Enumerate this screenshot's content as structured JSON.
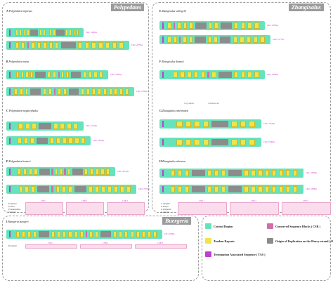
{
  "colors": {
    "control_region": "#66e3bb",
    "tandem_repeat": "#f0e44a",
    "csb": "#d26ea6",
    "ohr": "#8c8c8c",
    "tas": "#c03fd2",
    "csb_box": "#fadcec"
  },
  "genera": {
    "polypedates": "Polypedates",
    "zhangixalus": "Zhangixalus",
    "buergeria": "Buergeria"
  },
  "panels": [
    {
      "letter": "A",
      "species": "Polypedates impresus",
      "rows": [
        {
          "end_label": "CR1: 1602bp",
          "segs": [
            [
              "m",
              0.07
            ],
            [
              "y",
              0.03
            ],
            [
              "y",
              0.03
            ],
            [
              "y",
              0.03
            ],
            [
              "y",
              0.03
            ],
            [
              "g",
              0.09
            ],
            [
              "y",
              0.03
            ],
            [
              "y",
              0.03
            ],
            [
              "m",
              0.015
            ],
            [
              "y",
              0.03
            ],
            [
              "y",
              0.03
            ],
            [
              "g",
              0.09
            ],
            [
              "y",
              0.03
            ],
            [
              "y",
              0.03
            ],
            [
              "y",
              0.03
            ],
            [
              "y",
              0.03
            ]
          ]
        },
        {
          "end_label": "CR2: 2079bp",
          "segs": [
            [
              "m",
              0.025
            ],
            [
              "y",
              0.02
            ],
            [
              "y",
              0.02
            ],
            [
              "p",
              0.01
            ],
            [
              "y",
              0.02
            ],
            [
              "y",
              0.02
            ],
            [
              "y",
              0.02
            ],
            [
              "y",
              0.02
            ],
            [
              "y",
              0.02
            ],
            [
              "g",
              0.08
            ],
            [
              "y",
              0.025
            ],
            [
              "y",
              0.025
            ],
            [
              "y",
              0.025
            ],
            [
              "y",
              0.025
            ],
            [
              "y",
              0.025
            ],
            [
              "y",
              0.025
            ],
            [
              "y",
              0.025
            ]
          ]
        }
      ]
    },
    {
      "letter": "B",
      "species": "Polypedates mutus",
      "rows": [
        {
          "end_label": "CR1: 1860bp",
          "segs": [
            [
              "m",
              0.04
            ],
            [
              "y",
              0.02
            ],
            [
              "y",
              0.02
            ],
            [
              "y",
              0.02
            ],
            [
              "y",
              0.02
            ],
            [
              "g",
              0.07
            ],
            [
              "y",
              0.025
            ],
            [
              "y",
              0.025
            ],
            [
              "p",
              0.01
            ],
            [
              "y",
              0.02
            ],
            [
              "y",
              0.02
            ],
            [
              "g",
              0.07
            ],
            [
              "y",
              0.025
            ],
            [
              "y",
              0.025
            ],
            [
              "y",
              0.025
            ],
            [
              "y",
              0.025
            ]
          ]
        },
        {
          "end_label": "CR2: 2785bp",
          "segs": [
            [
              "m",
              0.02
            ],
            [
              "y",
              0.02
            ],
            [
              "y",
              0.02
            ],
            [
              "y",
              0.02
            ],
            [
              "g",
              0.06
            ],
            [
              "y",
              0.02
            ],
            [
              "y",
              0.02
            ],
            [
              "p",
              0.01
            ],
            [
              "y",
              0.02
            ],
            [
              "y",
              0.02
            ],
            [
              "g",
              0.06
            ],
            [
              "y",
              0.02
            ],
            [
              "y",
              0.02
            ],
            [
              "y",
              0.02
            ],
            [
              "y",
              0.02
            ],
            [
              "y",
              0.02
            ],
            [
              "y",
              0.02
            ],
            [
              "y",
              0.02
            ],
            [
              "y",
              0.02
            ],
            [
              "y",
              0.02
            ]
          ]
        }
      ]
    },
    {
      "letter": "C",
      "species": "Polypedates megacephalus",
      "rows": [
        {
          "end_label": "CR1: 1574bp",
          "segs": [
            [
              "m",
              0.05
            ],
            [
              "y",
              0.03
            ],
            [
              "y",
              0.03
            ],
            [
              "y",
              0.03
            ],
            [
              "g",
              0.08
            ],
            [
              "y",
              0.03
            ],
            [
              "y",
              0.03
            ],
            [
              "y",
              0.03
            ],
            [
              "y",
              0.03
            ]
          ]
        },
        {
          "end_label": "CR2: 1930bp",
          "segs": [
            [
              "m",
              0.05
            ],
            [
              "y",
              0.03
            ],
            [
              "y",
              0.03
            ],
            [
              "y",
              0.03
            ],
            [
              "g",
              0.08
            ],
            [
              "y",
              0.03
            ],
            [
              "y",
              0.03
            ],
            [
              "y",
              0.03
            ],
            [
              "y",
              0.03
            ],
            [
              "y",
              0.03
            ],
            [
              "y",
              0.03
            ]
          ]
        }
      ]
    },
    {
      "letter": "D",
      "species": "Polypedates braueri",
      "rows": [
        {
          "end_label": "CR1: 2012bp",
          "segs": [
            [
              "m",
              0.05
            ],
            [
              "y",
              0.025
            ],
            [
              "y",
              0.025
            ],
            [
              "y",
              0.025
            ],
            [
              "y",
              0.025
            ],
            [
              "g",
              0.07
            ],
            [
              "p",
              0.01
            ],
            [
              "y",
              0.02
            ],
            [
              "y",
              0.02
            ],
            [
              "p",
              0.01
            ],
            [
              "y",
              0.02
            ],
            [
              "g",
              0.07
            ],
            [
              "y",
              0.025
            ],
            [
              "y",
              0.025
            ],
            [
              "y",
              0.025
            ],
            [
              "y",
              0.025
            ],
            [
              "y",
              0.025
            ]
          ]
        },
        {
          "end_label": "CR2: 2707bp",
          "segs": [
            [
              "m",
              0.04
            ],
            [
              "y",
              0.02
            ],
            [
              "y",
              0.02
            ],
            [
              "y",
              0.02
            ],
            [
              "g",
              0.06
            ],
            [
              "p",
              0.01
            ],
            [
              "y",
              0.02
            ],
            [
              "y",
              0.02
            ],
            [
              "y",
              0.02
            ],
            [
              "g",
              0.06
            ],
            [
              "y",
              0.02
            ],
            [
              "y",
              0.02
            ],
            [
              "y",
              0.02
            ],
            [
              "y",
              0.02
            ],
            [
              "y",
              0.02
            ],
            [
              "y",
              0.02
            ],
            [
              "y",
              0.02
            ]
          ]
        }
      ]
    },
    {
      "letter": "E",
      "species": "Zhangixalus schlegelii",
      "rows": [
        {
          "end_label": "CR1: 2085bp",
          "segs": [
            [
              "m",
              0.02
            ],
            [
              "y",
              0.02
            ],
            [
              "p",
              0.008
            ],
            [
              "y",
              0.02
            ],
            [
              "y",
              0.02
            ],
            [
              "y",
              0.02
            ],
            [
              "g",
              0.06
            ],
            [
              "y",
              0.02
            ],
            [
              "y",
              0.02
            ],
            [
              "g",
              0.06
            ],
            [
              "y",
              0.025
            ],
            [
              "y",
              0.025
            ],
            [
              "y",
              0.025
            ],
            [
              "y",
              0.025
            ]
          ]
        },
        {
          "end_label": "CR2: 2177bp",
          "segs": [
            [
              "m",
              0.02
            ],
            [
              "y",
              0.02
            ],
            [
              "y",
              0.02
            ],
            [
              "p",
              0.008
            ],
            [
              "y",
              0.02
            ],
            [
              "y",
              0.02
            ],
            [
              "g",
              0.06
            ],
            [
              "y",
              0.02
            ],
            [
              "y",
              0.02
            ],
            [
              "g",
              0.06
            ],
            [
              "y",
              0.025
            ],
            [
              "y",
              0.025
            ],
            [
              "y",
              0.025
            ],
            [
              "y",
              0.025
            ],
            [
              "y",
              0.025
            ]
          ]
        }
      ]
    },
    {
      "letter": "F",
      "species": "Zhangixalus dennysi",
      "rows": [
        {
          "end_label": "CR1: 1906bp",
          "segs": [
            [
              "m",
              0.05
            ],
            [
              "y",
              0.025
            ],
            [
              "y",
              0.025
            ],
            [
              "y",
              0.025
            ],
            [
              "y",
              0.025
            ],
            [
              "y",
              0.025
            ],
            [
              "p",
              0.01
            ],
            [
              "y",
              0.025
            ],
            [
              "g",
              0.07
            ],
            [
              "y",
              0.025
            ],
            [
              "y",
              0.025
            ],
            [
              "y",
              0.025
            ],
            [
              "y",
              0.025
            ]
          ]
        }
      ]
    },
    {
      "letter": "G",
      "species": "Zhangixalus omeimontis",
      "rows": [
        {
          "end_label": "CR1: 1853bp",
          "segs": [
            [
              "m",
              0.05
            ],
            [
              "y",
              0.025
            ],
            [
              "y",
              0.025
            ],
            [
              "y",
              0.025
            ],
            [
              "y",
              0.025
            ],
            [
              "g",
              0.07
            ],
            [
              "y",
              0.025
            ],
            [
              "y",
              0.025
            ],
            [
              "y",
              0.025
            ]
          ]
        },
        {
          "end_label": "CR2: 1840bp",
          "segs": [
            [
              "m",
              0.05
            ],
            [
              "y",
              0.025
            ],
            [
              "y",
              0.025
            ],
            [
              "y",
              0.025
            ],
            [
              "y",
              0.025
            ],
            [
              "g",
              0.07
            ],
            [
              "y",
              0.025
            ],
            [
              "y",
              0.025
            ],
            [
              "y",
              0.025
            ]
          ]
        }
      ]
    },
    {
      "letter": "H",
      "species": "Zhangixalus arboreus",
      "rows": [
        {
          "end_label": "CR1: 2384bp",
          "segs": [
            [
              "m",
              0.03
            ],
            [
              "y",
              0.02
            ],
            [
              "y",
              0.02
            ],
            [
              "y",
              0.02
            ],
            [
              "g",
              0.06
            ],
            [
              "y",
              0.02
            ],
            [
              "y",
              0.02
            ],
            [
              "y",
              0.02
            ],
            [
              "g",
              0.06
            ],
            [
              "y",
              0.02
            ],
            [
              "y",
              0.02
            ],
            [
              "y",
              0.02
            ],
            [
              "y",
              0.02
            ],
            [
              "y",
              0.02
            ],
            [
              "y",
              0.02
            ],
            [
              "y",
              0.02
            ],
            [
              "y",
              0.02
            ]
          ]
        },
        {
          "end_label": "CR2: 2368bp",
          "segs": [
            [
              "m",
              0.03
            ],
            [
              "y",
              0.02
            ],
            [
              "y",
              0.02
            ],
            [
              "y",
              0.02
            ],
            [
              "g",
              0.06
            ],
            [
              "y",
              0.02
            ],
            [
              "y",
              0.02
            ],
            [
              "y",
              0.02
            ],
            [
              "g",
              0.06
            ],
            [
              "y",
              0.02
            ],
            [
              "y",
              0.02
            ],
            [
              "y",
              0.02
            ],
            [
              "y",
              0.02
            ],
            [
              "y",
              0.02
            ],
            [
              "y",
              0.02
            ],
            [
              "y",
              0.02
            ],
            [
              "y",
              0.02
            ]
          ]
        }
      ]
    },
    {
      "letter": "I",
      "species": "Buergeria buergeri",
      "rows": [
        {
          "end_label": "CR: 2678bp",
          "segs": [
            [
              "m",
              0.03
            ],
            [
              "y",
              0.02
            ],
            [
              "y",
              0.02
            ],
            [
              "y",
              0.02
            ],
            [
              "y",
              0.02
            ],
            [
              "g",
              0.06
            ],
            [
              "y",
              0.02
            ],
            [
              "y",
              0.02
            ],
            [
              "y",
              0.02
            ],
            [
              "y",
              0.02
            ],
            [
              "y",
              0.02
            ],
            [
              "y",
              0.02
            ],
            [
              "p",
              0.008
            ],
            [
              "y",
              0.02
            ],
            [
              "y",
              0.02
            ],
            [
              "g",
              0.06
            ],
            [
              "y",
              0.02
            ],
            [
              "y",
              0.02
            ],
            [
              "y",
              0.02
            ],
            [
              "y",
              0.02
            ],
            [
              "y",
              0.02
            ],
            [
              "y",
              0.02
            ],
            [
              "y",
              0.02
            ],
            [
              "y",
              0.02
            ]
          ]
        }
      ]
    }
  ],
  "csb": {
    "tags": [
      "CSB 1",
      "CSB 2",
      "CSB 3"
    ],
    "left_names": [
      "P. impresus",
      "P. mutus",
      "P. megacephalus",
      "P. braueri"
    ],
    "right_names": [
      "Z. schlegelii",
      "Z. dennysi",
      "Z. omeimontis",
      "Z. arboreus"
    ],
    "bottom_name": "B. buergeri"
  },
  "notes": {
    "copy_number": "Copy number",
    "consensus_size": "Consensus size"
  },
  "legend": [
    {
      "key": "control_region",
      "label": "Control Region"
    },
    {
      "key": "csb",
      "label": "Conserved Sequence Blocks ( CSB )"
    },
    {
      "key": "tandem_repeat",
      "label": "Tandem Repeats"
    },
    {
      "key": "ohr",
      "label": "Origin of Replication on the Heavy-strand ( O",
      "sub": "H",
      "close": " )"
    },
    {
      "key": "tas",
      "label": "Termination Associated Sequence ( TAS )"
    }
  ]
}
